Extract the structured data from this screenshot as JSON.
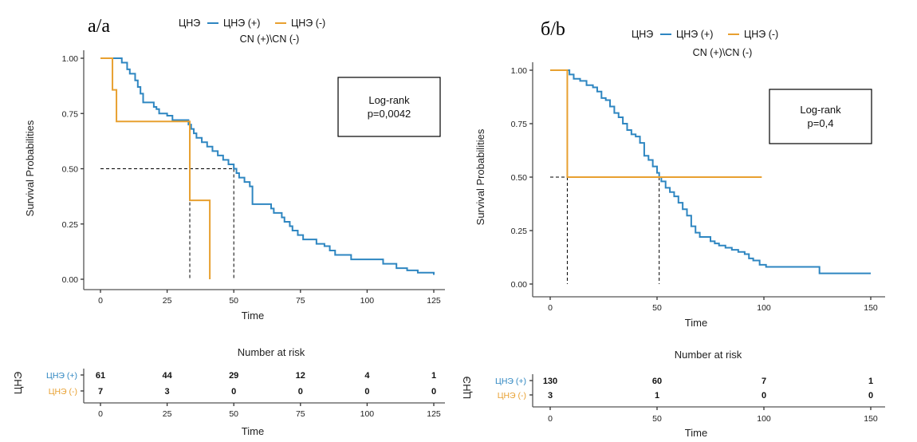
{
  "colors": {
    "positive": "#2e86c1",
    "negative": "#e8a030",
    "axis": "#555555",
    "guide": "#000000"
  },
  "chart_data": [
    {
      "type": "line",
      "subtype": "kaplan-meier",
      "panel_label": "а/a",
      "legend": {
        "title": "ЦНЭ",
        "subtitle": "CN (+)\\CN (-)",
        "position": "top",
        "entries": [
          "ЦНЭ (+)",
          "ЦНЭ (-)"
        ]
      },
      "xlabel": "Time",
      "ylabel": "Survival Probabilities",
      "xlim": [
        0,
        125
      ],
      "ylim": [
        0,
        1
      ],
      "xticks": [
        "0",
        "25",
        "50",
        "75",
        "100",
        "125"
      ],
      "xtick_values": [
        0,
        25,
        50,
        75,
        100,
        125
      ],
      "yticks": [
        "0.00",
        "0.25",
        "0.50",
        "0.75",
        "1.00"
      ],
      "ytick_values": [
        0,
        0.25,
        0.5,
        0.75,
        1
      ],
      "annotation": {
        "line1": "Log-rank",
        "line2": "p=0,0042",
        "position": "top-right"
      },
      "medians": [
        33.5,
        50
      ],
      "series": [
        {
          "name": "ЦНЭ (+)",
          "steps": [
            [
              0,
              1
            ],
            [
              7,
              1
            ],
            [
              8,
              0.98
            ],
            [
              10,
              0.95
            ],
            [
              11,
              0.93
            ],
            [
              13,
              0.9
            ],
            [
              14,
              0.87
            ],
            [
              15,
              0.84
            ],
            [
              16,
              0.8
            ],
            [
              18,
              0.8
            ],
            [
              20,
              0.78
            ],
            [
              21,
              0.77
            ],
            [
              22,
              0.75
            ],
            [
              24,
              0.75
            ],
            [
              25,
              0.74
            ],
            [
              27,
              0.72
            ],
            [
              30,
              0.72
            ],
            [
              33,
              0.7
            ],
            [
              34,
              0.68
            ],
            [
              35,
              0.66
            ],
            [
              36,
              0.64
            ],
            [
              38,
              0.62
            ],
            [
              40,
              0.6
            ],
            [
              42,
              0.58
            ],
            [
              44,
              0.56
            ],
            [
              46,
              0.54
            ],
            [
              48,
              0.52
            ],
            [
              50,
              0.5
            ],
            [
              51,
              0.48
            ],
            [
              52,
              0.46
            ],
            [
              54,
              0.44
            ],
            [
              56,
              0.42
            ],
            [
              57,
              0.34
            ],
            [
              63,
              0.34
            ],
            [
              64,
              0.32
            ],
            [
              65,
              0.3
            ],
            [
              68,
              0.28
            ],
            [
              69,
              0.26
            ],
            [
              71,
              0.24
            ],
            [
              72,
              0.22
            ],
            [
              74,
              0.2
            ],
            [
              76,
              0.18
            ],
            [
              79,
              0.18
            ],
            [
              81,
              0.16
            ],
            [
              84,
              0.15
            ],
            [
              86,
              0.13
            ],
            [
              88,
              0.11
            ],
            [
              93,
              0.11
            ],
            [
              94,
              0.09
            ],
            [
              105,
              0.09
            ],
            [
              106,
              0.07
            ],
            [
              111,
              0.05
            ],
            [
              115,
              0.04
            ],
            [
              119,
              0.03
            ],
            [
              125,
              0.02
            ]
          ],
          "end": 125
        },
        {
          "name": "ЦНЭ (-)",
          "steps": [
            [
              0,
              1
            ],
            [
              4,
              1
            ],
            [
              4.5,
              0.857
            ],
            [
              6,
              0.714
            ],
            [
              33.5,
              0.714
            ],
            [
              33.5,
              0.357
            ],
            [
              41,
              0.357
            ],
            [
              41,
              0
            ]
          ],
          "end": 41
        }
      ],
      "risk_table": {
        "title": "Number at risk",
        "strata_title": "ЦНЭ",
        "times": [
          0,
          25,
          50,
          75,
          100,
          125
        ],
        "rows": [
          {
            "label": "ЦНЭ (+)",
            "values": [
              "61",
              "44",
              "29",
              "12",
              "4",
              "1"
            ]
          },
          {
            "label": "ЦНЭ (-)",
            "values": [
              "7",
              "3",
              "0",
              "0",
              "0",
              "0"
            ]
          }
        ]
      }
    },
    {
      "type": "line",
      "subtype": "kaplan-meier",
      "panel_label": "б/b",
      "legend": {
        "title": "ЦНЭ",
        "subtitle": "CN (+)\\CN (-)",
        "position": "top",
        "entries": [
          "ЦНЭ (+)",
          "ЦНЭ (-)"
        ]
      },
      "xlabel": "Time",
      "ylabel": "Survival Probabilities",
      "xlim": [
        0,
        150
      ],
      "ylim": [
        0,
        1
      ],
      "xticks": [
        "0",
        "50",
        "100",
        "150"
      ],
      "xtick_values": [
        0,
        50,
        100,
        150
      ],
      "yticks": [
        "0.00",
        "0.25",
        "0.50",
        "0.75",
        "1.00"
      ],
      "ytick_values": [
        0,
        0.25,
        0.5,
        0.75,
        1
      ],
      "annotation": {
        "line1": "Log-rank",
        "line2": "p=0,4",
        "position": "top-right"
      },
      "medians": [
        8,
        51
      ],
      "series": [
        {
          "name": "ЦНЭ (+)",
          "steps": [
            [
              0,
              1
            ],
            [
              8,
              1
            ],
            [
              9,
              0.98
            ],
            [
              11,
              0.96
            ],
            [
              14,
              0.95
            ],
            [
              17,
              0.93
            ],
            [
              20,
              0.92
            ],
            [
              22,
              0.9
            ],
            [
              24,
              0.87
            ],
            [
              26,
              0.86
            ],
            [
              28,
              0.83
            ],
            [
              30,
              0.8
            ],
            [
              32,
              0.78
            ],
            [
              34,
              0.75
            ],
            [
              36,
              0.72
            ],
            [
              38,
              0.7
            ],
            [
              40,
              0.69
            ],
            [
              42,
              0.66
            ],
            [
              44,
              0.6
            ],
            [
              46,
              0.58
            ],
            [
              48,
              0.55
            ],
            [
              50,
              0.52
            ],
            [
              51,
              0.5
            ],
            [
              52,
              0.48
            ],
            [
              54,
              0.45
            ],
            [
              56,
              0.43
            ],
            [
              58,
              0.41
            ],
            [
              60,
              0.38
            ],
            [
              62,
              0.35
            ],
            [
              64,
              0.32
            ],
            [
              66,
              0.27
            ],
            [
              68,
              0.24
            ],
            [
              70,
              0.22
            ],
            [
              73,
              0.22
            ],
            [
              75,
              0.2
            ],
            [
              77,
              0.19
            ],
            [
              79,
              0.18
            ],
            [
              82,
              0.17
            ],
            [
              85,
              0.16
            ],
            [
              88,
              0.15
            ],
            [
              91,
              0.14
            ],
            [
              93,
              0.12
            ],
            [
              95,
              0.11
            ],
            [
              98,
              0.09
            ],
            [
              101,
              0.08
            ],
            [
              126,
              0.08
            ],
            [
              126,
              0.05
            ],
            [
              150,
              0.05
            ]
          ],
          "end": 150
        },
        {
          "name": "ЦНЭ (-)",
          "steps": [
            [
              0,
              1
            ],
            [
              8,
              1
            ],
            [
              8,
              0.5
            ],
            [
              99,
              0.5
            ]
          ],
          "end": 99
        }
      ],
      "risk_table": {
        "title": "Number at risk",
        "strata_title": "ЦНЭ",
        "times": [
          0,
          50,
          100,
          150
        ],
        "rows": [
          {
            "label": "ЦНЭ (+)",
            "values": [
              "130",
              "60",
              "7",
              "1"
            ]
          },
          {
            "label": "ЦНЭ (-)",
            "values": [
              "3",
              "1",
              "0",
              "0"
            ]
          }
        ]
      }
    }
  ]
}
